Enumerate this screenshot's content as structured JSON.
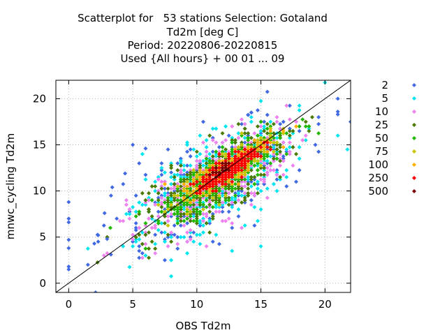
{
  "chart_data": {
    "type": "scatter",
    "title_lines": [
      "Scatterplot for   53 stations Selection: Gotaland",
      "Td2m [deg C]",
      "Period: 20220806-20220815",
      "Used {All hours} + 00 01 ... 09"
    ],
    "xlabel": "OBS Td2m",
    "ylabel": "mnwc_cycling Td2m",
    "xlim": [
      -1,
      22
    ],
    "ylim": [
      -1,
      22
    ],
    "x_ticks": [
      0,
      5,
      10,
      15,
      20
    ],
    "y_ticks": [
      0,
      5,
      10,
      15,
      20
    ],
    "grid": true,
    "diagonal_line": true,
    "legend_placement": "right",
    "legend": [
      {
        "label": "2",
        "color": "#4169e1"
      },
      {
        "label": "5",
        "color": "#00e5ee"
      },
      {
        "label": "10",
        "color": "#ee82ee"
      },
      {
        "label": "25",
        "color": "#4a7a00"
      },
      {
        "label": "50",
        "color": "#22b800"
      },
      {
        "label": "75",
        "color": "#c8c800"
      },
      {
        "label": "100",
        "color": "#ffb000"
      },
      {
        "label": "250",
        "color": "#ff0000"
      },
      {
        "label": "500",
        "color": "#7a0000"
      }
    ],
    "density_bands": [
      {
        "level": "2",
        "color": "#4169e1",
        "center": [
          11.5,
          11.2
        ],
        "spread_along": 8.5,
        "spread_across": 2.9,
        "points": 260
      },
      {
        "level": "5",
        "color": "#00e5ee",
        "center": [
          11.5,
          11.0
        ],
        "spread_along": 7.8,
        "spread_across": 2.5,
        "points": 420
      },
      {
        "level": "10",
        "color": "#ee82ee",
        "center": [
          11.3,
          10.8
        ],
        "spread_along": 7.0,
        "spread_across": 2.1,
        "points": 380
      },
      {
        "level": "25",
        "color": "#4a7a00",
        "center": [
          11.5,
          11.2
        ],
        "spread_along": 6.2,
        "spread_across": 1.7,
        "points": 420
      },
      {
        "level": "50",
        "color": "#22b800",
        "center": [
          12.0,
          11.8
        ],
        "spread_along": 5.5,
        "spread_across": 1.3,
        "points": 380
      },
      {
        "level": "75",
        "color": "#c8c800",
        "center": [
          12.0,
          12.0
        ],
        "spread_along": 4.6,
        "spread_across": 0.95,
        "points": 220
      },
      {
        "level": "100",
        "color": "#ffb000",
        "center": [
          12.2,
          12.2
        ],
        "spread_along": 4.0,
        "spread_across": 0.8,
        "points": 160
      },
      {
        "level": "250",
        "color": "#ff0000",
        "center": [
          12.5,
          12.4
        ],
        "spread_along": 2.9,
        "spread_across": 0.6,
        "points": 260
      },
      {
        "level": "500",
        "color": "#7a0000",
        "center": [
          12.0,
          12.4
        ],
        "spread_along": 1.0,
        "spread_across": 0.3,
        "points": 25
      }
    ],
    "outliers": [
      {
        "x": 0.0,
        "y": 8.8
      },
      {
        "x": 0.0,
        "y": 7.0
      },
      {
        "x": 0.0,
        "y": 6.6
      },
      {
        "x": 0.0,
        "y": 4.7
      },
      {
        "x": 0.0,
        "y": 3.8
      },
      {
        "x": 0.0,
        "y": 1.8
      },
      {
        "x": 0.0,
        "y": 1.5
      },
      {
        "x": 2.1,
        "y": -1.0
      },
      {
        "x": 2.0,
        "y": 4.3
      },
      {
        "x": 2.3,
        "y": 5.2
      },
      {
        "x": 2.3,
        "y": 4.5
      },
      {
        "x": 2.8,
        "y": 7.6
      },
      {
        "x": 3.3,
        "y": 9.5
      },
      {
        "x": 3.4,
        "y": 10.4
      },
      {
        "x": 3.0,
        "y": 4.8
      },
      {
        "x": 3.3,
        "y": 3.1
      },
      {
        "x": 21.0,
        "y": 18.3
      },
      {
        "x": 21.0,
        "y": 18.6
      },
      {
        "x": 22.0,
        "y": 17.5
      },
      {
        "x": 5.0,
        "y": 15.0
      },
      {
        "x": 6.0,
        "y": 14.6
      },
      {
        "x": 4.4,
        "y": 11.9
      }
    ]
  }
}
